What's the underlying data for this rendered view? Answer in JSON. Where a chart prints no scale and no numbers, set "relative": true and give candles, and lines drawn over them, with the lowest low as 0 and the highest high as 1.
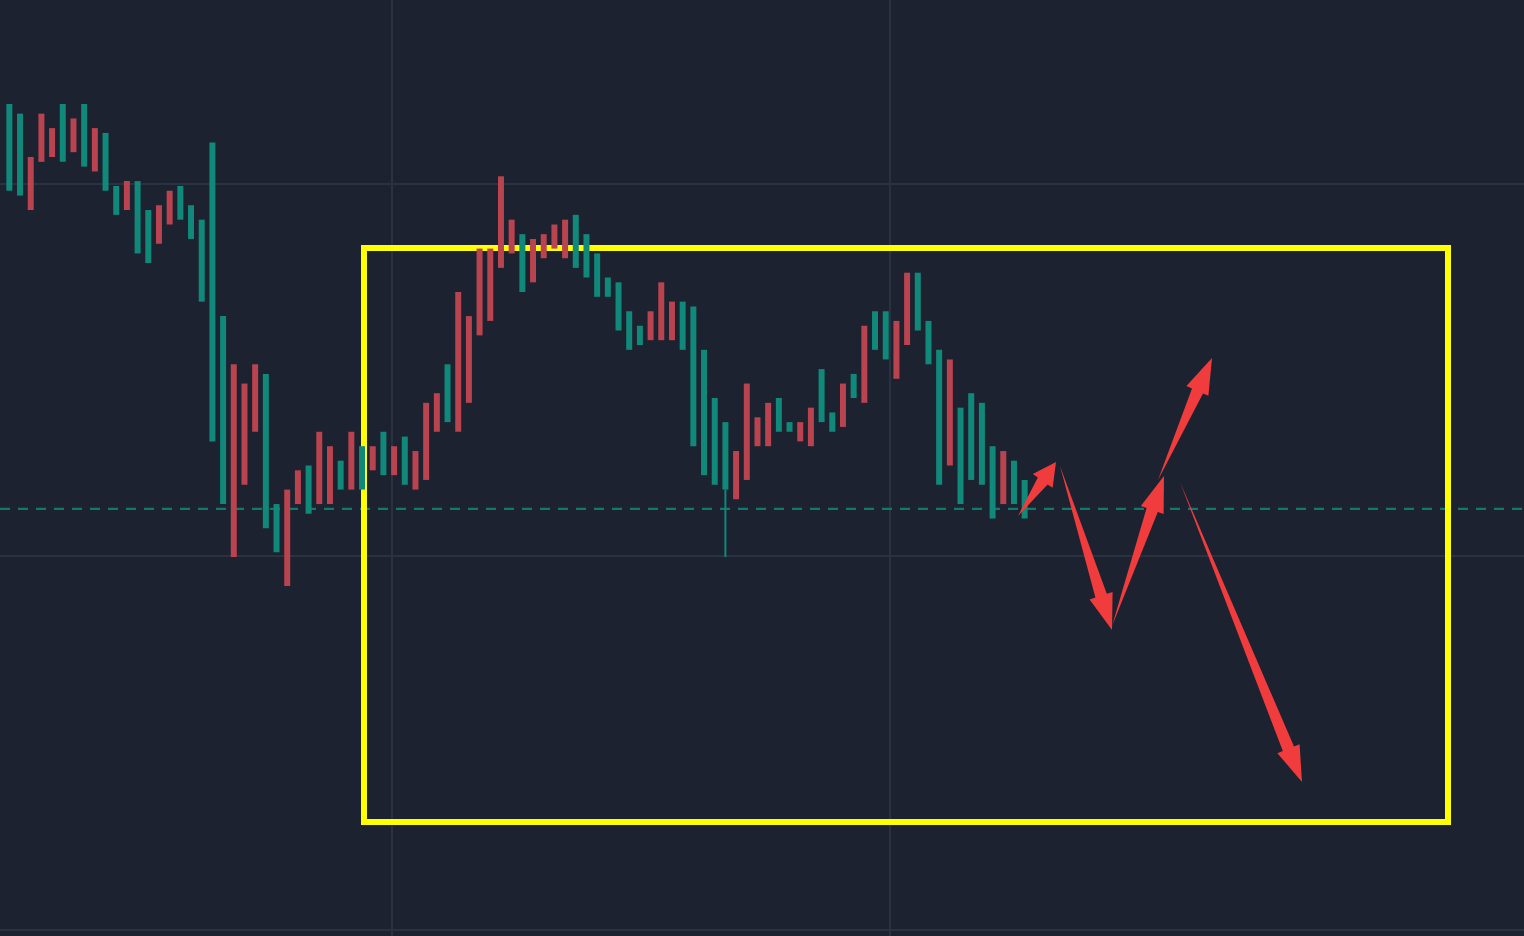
{
  "chart_data": {
    "type": "candlestick",
    "relative": true,
    "grid": true,
    "categories": [
      null,
      null,
      null,
      null,
      null,
      null,
      null,
      null,
      null,
      null,
      null,
      null,
      null,
      null,
      null,
      null,
      null,
      null,
      null,
      null,
      null,
      null,
      null,
      null,
      null,
      null,
      null,
      null,
      null,
      null,
      null,
      null,
      null,
      null,
      null,
      null,
      null,
      null,
      null,
      null,
      null,
      null,
      null,
      null,
      null,
      null,
      null,
      null,
      null,
      null,
      null,
      null,
      null,
      null,
      null,
      null,
      null,
      null,
      null,
      null,
      null,
      null,
      null,
      null,
      null,
      null,
      null,
      null,
      null,
      null,
      null,
      null,
      null,
      null,
      null,
      null,
      null,
      null,
      null,
      null,
      null,
      null,
      null,
      null,
      null,
      null,
      null,
      null,
      null,
      null,
      null,
      null,
      null,
      null,
      null,
      null
    ],
    "ohlc": [
      [
        1.0,
        1.0,
        0.82,
        0.82
      ],
      [
        0.98,
        0.98,
        0.81,
        0.81
      ],
      [
        0.78,
        0.89,
        0.78,
        0.89
      ],
      [
        0.88,
        0.98,
        0.88,
        0.98
      ],
      [
        0.89,
        0.95,
        0.89,
        0.95
      ],
      [
        1.0,
        1.0,
        0.88,
        0.88
      ],
      [
        0.9,
        0.97,
        0.9,
        0.97
      ],
      [
        1.0,
        1.0,
        0.87,
        0.87
      ],
      [
        0.86,
        0.95,
        0.86,
        0.95
      ],
      [
        0.94,
        0.94,
        0.82,
        0.82
      ],
      [
        0.83,
        0.83,
        0.77,
        0.77
      ],
      [
        0.78,
        0.84,
        0.78,
        0.84
      ],
      [
        0.84,
        0.84,
        0.69,
        0.69
      ],
      [
        0.78,
        0.78,
        0.67,
        0.67
      ],
      [
        0.71,
        0.79,
        0.71,
        0.79
      ],
      [
        0.75,
        0.82,
        0.75,
        0.82
      ],
      [
        0.83,
        0.83,
        0.76,
        0.76
      ],
      [
        0.79,
        0.79,
        0.72,
        0.72
      ],
      [
        0.76,
        0.76,
        0.59,
        0.59
      ],
      [
        0.92,
        0.92,
        0.3,
        0.3
      ],
      [
        0.56,
        0.56,
        0.17,
        0.17
      ],
      [
        0.06,
        0.46,
        0.06,
        0.46
      ],
      [
        0.21,
        0.42,
        0.21,
        0.42
      ],
      [
        0.32,
        0.46,
        0.32,
        0.46
      ],
      [
        0.44,
        0.44,
        0.12,
        0.12
      ],
      [
        0.17,
        0.17,
        0.07,
        0.07
      ],
      [
        0.0,
        0.2,
        0.0,
        0.2
      ],
      [
        0.17,
        0.24,
        0.17,
        0.24
      ],
      [
        0.25,
        0.25,
        0.15,
        0.15
      ],
      [
        0.17,
        0.32,
        0.17,
        0.32
      ],
      [
        0.17,
        0.29,
        0.17,
        0.29
      ],
      [
        0.26,
        0.26,
        0.2,
        0.2
      ],
      [
        0.2,
        0.32,
        0.2,
        0.32
      ],
      [
        0.29,
        0.29,
        0.2,
        0.2
      ],
      [
        0.24,
        0.29,
        0.24,
        0.29
      ],
      [
        0.32,
        0.32,
        0.23,
        0.23
      ],
      [
        0.23,
        0.29,
        0.23,
        0.29
      ],
      [
        0.31,
        0.31,
        0.21,
        0.21
      ],
      [
        0.2,
        0.28,
        0.2,
        0.28
      ],
      [
        0.22,
        0.38,
        0.22,
        0.38
      ],
      [
        0.32,
        0.4,
        0.32,
        0.4
      ],
      [
        0.46,
        0.46,
        0.34,
        0.34
      ],
      [
        0.32,
        0.61,
        0.32,
        0.61
      ],
      [
        0.38,
        0.56,
        0.38,
        0.56
      ],
      [
        0.52,
        0.7,
        0.52,
        0.7
      ],
      [
        0.55,
        0.7,
        0.55,
        0.7
      ],
      [
        0.66,
        0.85,
        0.66,
        0.85
      ],
      [
        0.69,
        0.76,
        0.69,
        0.76
      ],
      [
        0.73,
        0.73,
        0.61,
        0.61
      ],
      [
        0.63,
        0.72,
        0.63,
        0.72
      ],
      [
        0.68,
        0.73,
        0.68,
        0.73
      ],
      [
        0.7,
        0.75,
        0.7,
        0.75
      ],
      [
        0.68,
        0.76,
        0.68,
        0.76
      ],
      [
        0.77,
        0.77,
        0.66,
        0.66
      ],
      [
        0.73,
        0.73,
        0.64,
        0.64
      ],
      [
        0.69,
        0.69,
        0.6,
        0.6
      ],
      [
        0.64,
        0.64,
        0.6,
        0.6
      ],
      [
        0.63,
        0.63,
        0.53,
        0.53
      ],
      [
        0.57,
        0.57,
        0.49,
        0.49
      ],
      [
        0.54,
        0.54,
        0.5,
        0.5
      ],
      [
        0.51,
        0.57,
        0.51,
        0.57
      ],
      [
        0.51,
        0.63,
        0.51,
        0.63
      ],
      [
        0.51,
        0.59,
        0.51,
        0.59
      ],
      [
        0.59,
        0.59,
        0.49,
        0.49
      ],
      [
        0.58,
        0.58,
        0.29,
        0.29
      ],
      [
        0.49,
        0.49,
        0.23,
        0.23
      ],
      [
        0.39,
        0.39,
        0.21,
        0.21
      ],
      [
        0.34,
        0.34,
        0.06,
        0.2
      ],
      [
        0.18,
        0.28,
        0.18,
        0.28
      ],
      [
        0.22,
        0.42,
        0.22,
        0.42
      ],
      [
        0.29,
        0.35,
        0.29,
        0.35
      ],
      [
        0.29,
        0.38,
        0.29,
        0.38
      ],
      [
        0.39,
        0.39,
        0.32,
        0.32
      ],
      [
        0.34,
        0.34,
        0.32,
        0.32
      ],
      [
        0.3,
        0.34,
        0.3,
        0.34
      ],
      [
        0.29,
        0.37,
        0.29,
        0.37
      ],
      [
        0.45,
        0.45,
        0.34,
        0.34
      ],
      [
        0.36,
        0.36,
        0.32,
        0.32
      ],
      [
        0.33,
        0.42,
        0.33,
        0.42
      ],
      [
        0.44,
        0.44,
        0.39,
        0.39
      ],
      [
        0.38,
        0.54,
        0.38,
        0.54
      ],
      [
        0.57,
        0.57,
        0.49,
        0.49
      ],
      [
        0.57,
        0.57,
        0.47,
        0.47
      ],
      [
        0.43,
        0.55,
        0.43,
        0.55
      ],
      [
        0.5,
        0.65,
        0.5,
        0.65
      ],
      [
        0.65,
        0.65,
        0.53,
        0.53
      ],
      [
        0.55,
        0.55,
        0.46,
        0.46
      ],
      [
        0.49,
        0.49,
        0.21,
        0.21
      ],
      [
        0.25,
        0.47,
        0.25,
        0.47
      ],
      [
        0.37,
        0.37,
        0.17,
        0.17
      ],
      [
        0.4,
        0.4,
        0.22,
        0.22
      ],
      [
        0.38,
        0.38,
        0.21,
        0.21
      ],
      [
        0.29,
        0.29,
        0.14,
        0.14
      ],
      [
        0.17,
        0.28,
        0.17,
        0.28
      ],
      [
        0.26,
        0.26,
        0.17,
        0.17
      ],
      [
        0.22,
        0.22,
        0.14,
        0.14
      ]
    ],
    "colors": [
      "#10897a",
      "#10897a",
      "#b9434e",
      "#b9434e",
      "#b9434e",
      "#10897a",
      "#b9434e",
      "#10897a",
      "#b9434e",
      "#10897a",
      "#10897a",
      "#b9434e",
      "#10897a",
      "#10897a",
      "#b9434e",
      "#b9434e",
      "#10897a",
      "#10897a",
      "#10897a",
      "#10897a",
      "#10897a",
      "#b9434e",
      "#b9434e",
      "#b9434e",
      "#10897a",
      "#10897a",
      "#b9434e",
      "#b9434e",
      "#10897a",
      "#b9434e",
      "#b9434e",
      "#10897a",
      "#b9434e",
      "#10897a",
      "#b9434e",
      "#10897a",
      "#b9434e",
      "#10897a",
      "#b9434e",
      "#b9434e",
      "#b9434e",
      "#10897a",
      "#b9434e",
      "#b9434e",
      "#b9434e",
      "#b9434e",
      "#b9434e",
      "#b9434e",
      "#10897a",
      "#b9434e",
      "#b9434e",
      "#b9434e",
      "#b9434e",
      "#10897a",
      "#10897a",
      "#10897a",
      "#10897a",
      "#10897a",
      "#10897a",
      "#10897a",
      "#b9434e",
      "#b9434e",
      "#b9434e",
      "#10897a",
      "#10897a",
      "#10897a",
      "#10897a",
      "#10897a",
      "#b9434e",
      "#b9434e",
      "#b9434e",
      "#b9434e",
      "#10897a",
      "#10897a",
      "#b9434e",
      "#b9434e",
      "#10897a",
      "#10897a",
      "#b9434e",
      "#10897a",
      "#b9434e",
      "#10897a",
      "#10897a",
      "#b9434e",
      "#b9434e",
      "#10897a",
      "#10897a",
      "#10897a",
      "#b9434e",
      "#10897a",
      "#10897a",
      "#10897a",
      "#10897a",
      "#b9434e",
      "#10897a",
      "#10897a"
    ],
    "ref_lines": [
      {
        "axis": "y",
        "value": 0.16,
        "color": "#0e7a6a",
        "line_style": "dashed"
      }
    ]
  }
}
